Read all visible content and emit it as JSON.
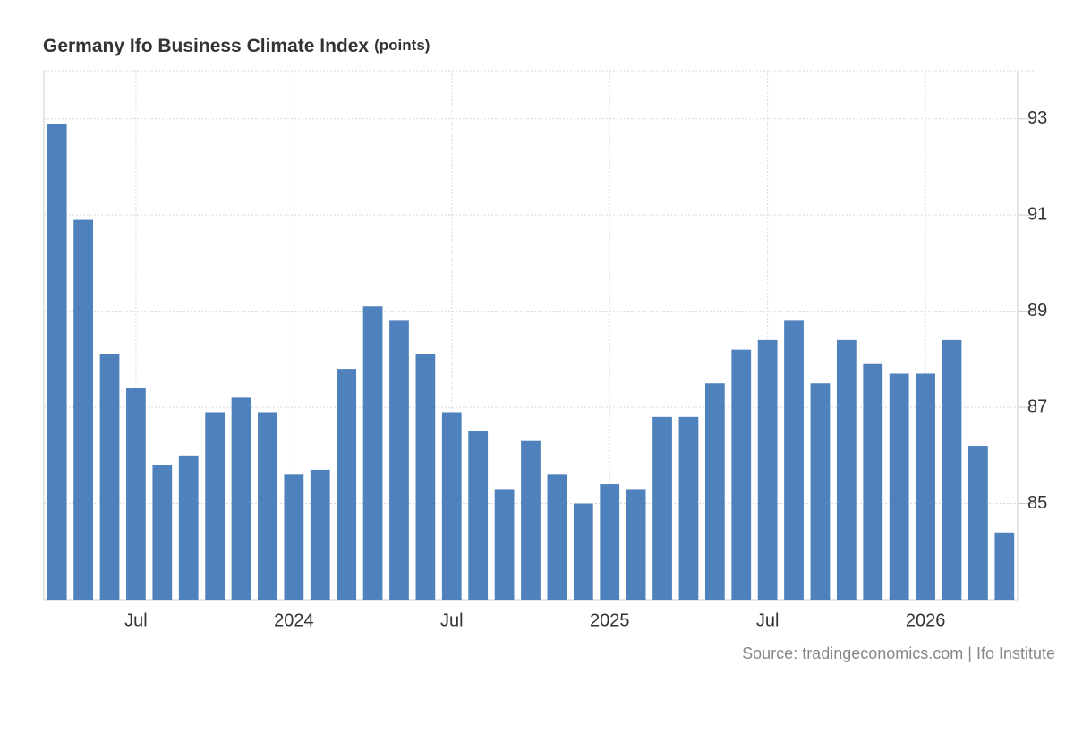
{
  "chart_data": {
    "type": "bar",
    "title": "Germany Ifo Business Climate Index",
    "subtitle": "(points)",
    "source": "Source: tradingeconomics.com | Ifo Institute",
    "categories": [
      null,
      null,
      null,
      "Jul",
      null,
      null,
      null,
      null,
      null,
      "2024",
      null,
      null,
      null,
      null,
      null,
      "Jul",
      null,
      null,
      null,
      null,
      null,
      "2025",
      null,
      null,
      null,
      null,
      null,
      "Jul",
      null,
      null,
      null,
      null,
      null,
      "2026",
      null,
      null,
      null
    ],
    "values": [
      92.9,
      90.9,
      88.1,
      87.4,
      85.8,
      86.0,
      86.9,
      87.2,
      86.9,
      85.6,
      85.7,
      87.8,
      89.1,
      88.8,
      88.1,
      86.9,
      86.5,
      85.3,
      86.3,
      85.6,
      85.0,
      85.4,
      85.3,
      86.8,
      86.8,
      87.5,
      88.2,
      88.4,
      88.8,
      87.5,
      88.4,
      87.9,
      87.7,
      87.7,
      88.4,
      86.2,
      84.4
    ],
    "color": "#4f81bd",
    "ylim": [
      83,
      94
    ],
    "yticks": [
      85,
      87,
      89,
      91,
      93
    ],
    "grid": true
  }
}
